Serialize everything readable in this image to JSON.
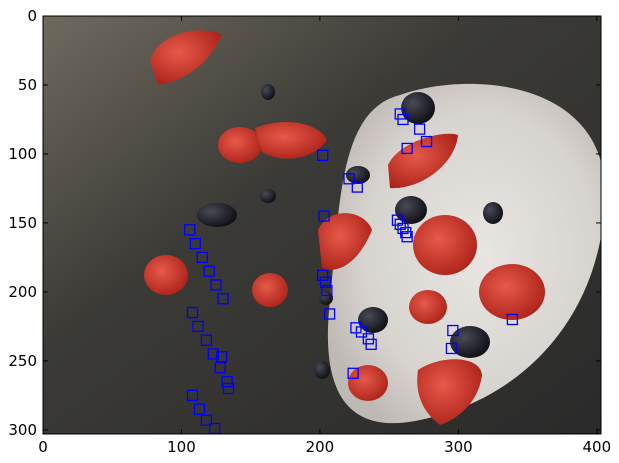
{
  "chart_data": {
    "type": "scatter",
    "title": "",
    "xlabel": "",
    "ylabel": "",
    "xlim": [
      0,
      403
    ],
    "ylim": [
      303,
      0
    ],
    "x_ticks": [
      0,
      100,
      200,
      300,
      400
    ],
    "y_ticks": [
      0,
      50,
      100,
      150,
      200,
      250,
      300
    ],
    "x_tick_labels": [
      "0",
      "100",
      "200",
      "300",
      "400"
    ],
    "y_tick_labels": [
      "0",
      "50",
      "100",
      "150",
      "200",
      "250",
      "300"
    ],
    "grid": false,
    "marker_color": "#0000ff",
    "marker": "hollow-square",
    "background_image": "photo of strawberries and blackberries falling into a white bowl",
    "series": [
      {
        "values_x": [
          258,
          260,
          272,
          277,
          263,
          202,
          221,
          227,
          203,
          256,
          258,
          260,
          262,
          263,
          202,
          204,
          205,
          207,
          226,
          230,
          235,
          237,
          296,
          295,
          339,
          224,
          106,
          110,
          115,
          120,
          125,
          130,
          108,
          112,
          118,
          123,
          128,
          133,
          108,
          113,
          118,
          124,
          129,
          134
        ],
        "values_y": [
          71,
          75,
          82,
          91,
          96,
          101,
          118,
          124,
          145,
          148,
          151,
          154,
          157,
          160,
          188,
          193,
          199,
          216,
          226,
          229,
          234,
          238,
          228,
          241,
          220,
          259,
          155,
          165,
          175,
          185,
          195,
          205,
          215,
          225,
          235,
          245,
          255,
          265,
          275,
          285,
          293,
          299,
          247,
          270
        ]
      }
    ]
  }
}
